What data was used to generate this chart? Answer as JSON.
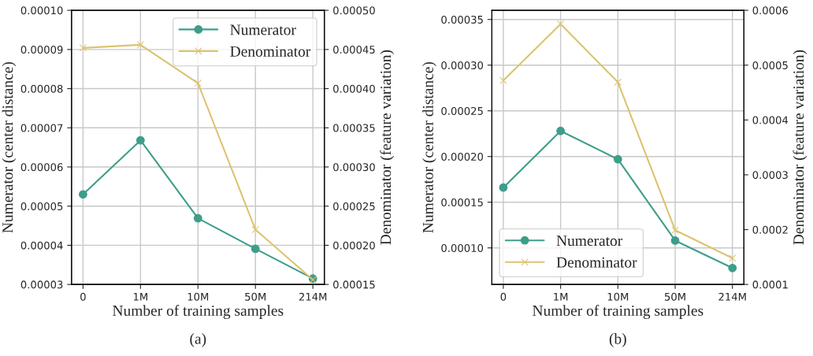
{
  "chart_data": [
    {
      "type": "line",
      "categories": [
        "0",
        "1M",
        "10M",
        "50M",
        "214M"
      ],
      "xlabel": "Number of training samples",
      "ylabel": "Numerator (center distance)",
      "y2label": "Denominator (feature variation)",
      "series": [
        {
          "name": "Numerator",
          "color": "#3d9e8a",
          "marker": "circle",
          "values": [
            5.3e-05,
            6.68e-05,
            4.69e-05,
            3.91e-05,
            3.15e-05
          ]
        },
        {
          "name": "Denominator",
          "color": "#dcc36f",
          "marker": "cross",
          "axis": "y2",
          "values": [
            0.000452,
            0.000456,
            0.000407,
            0.00022,
            0.000156
          ]
        }
      ],
      "ylim": [
        3e-05,
        0.0001
      ],
      "yticks": [
        {
          "value": 3e-05,
          "label": "0.00003"
        },
        {
          "value": 4e-05,
          "label": "0.00004"
        },
        {
          "value": 5e-05,
          "label": "0.00005"
        },
        {
          "value": 6e-05,
          "label": "0.00006"
        },
        {
          "value": 7e-05,
          "label": "0.00007"
        },
        {
          "value": 8e-05,
          "label": "0.00008"
        },
        {
          "value": 9e-05,
          "label": "0.00009"
        },
        {
          "value": 0.0001,
          "label": "0.00010"
        }
      ],
      "y2lim": [
        0.00015,
        0.0005
      ],
      "y2ticks": [
        {
          "value": 0.00015,
          "label": "0.00015"
        },
        {
          "value": 0.0002,
          "label": "0.00020"
        },
        {
          "value": 0.00025,
          "label": "0.00025"
        },
        {
          "value": 0.0003,
          "label": "0.00030"
        },
        {
          "value": 0.00035,
          "label": "0.00035"
        },
        {
          "value": 0.0004,
          "label": "0.00040"
        },
        {
          "value": 0.00045,
          "label": "0.00045"
        },
        {
          "value": 0.0005,
          "label": "0.00050"
        }
      ],
      "grid": true,
      "legend": "top right",
      "annotations": [
        "(a)"
      ]
    },
    {
      "type": "line",
      "categories": [
        "0",
        "1M",
        "10M",
        "50M",
        "214M"
      ],
      "xlabel": "Number of training samples",
      "ylabel": "Numerator (center distance)",
      "y2label": "Denominator (feature variation)",
      "series": [
        {
          "name": "Numerator",
          "color": "#3d9e8a",
          "marker": "circle",
          "values": [
            0.000166,
            0.000228,
            0.000197,
            0.000108,
            7.8e-05
          ]
        },
        {
          "name": "Denominator",
          "color": "#dcc36f",
          "marker": "cross",
          "axis": "y2",
          "values": [
            0.000472,
            0.000575,
            0.000469,
            0.000199,
            0.000148
          ]
        }
      ],
      "ylim": [
        6e-05,
        0.00036
      ],
      "yticks": [
        {
          "value": 0.0001,
          "label": "0.00010"
        },
        {
          "value": 0.00015,
          "label": "0.00015"
        },
        {
          "value": 0.0002,
          "label": "0.00020"
        },
        {
          "value": 0.00025,
          "label": "0.00025"
        },
        {
          "value": 0.0003,
          "label": "0.00030"
        },
        {
          "value": 0.00035,
          "label": "0.00035"
        }
      ],
      "y2lim": [
        0.0001,
        0.0006
      ],
      "y2ticks": [
        0.0001,
        0.0002,
        0.0003,
        0.0004,
        0.0005,
        0.0006
      ],
      "grid": true,
      "legend": "bottom left",
      "annotations": [
        "(b)"
      ]
    }
  ]
}
